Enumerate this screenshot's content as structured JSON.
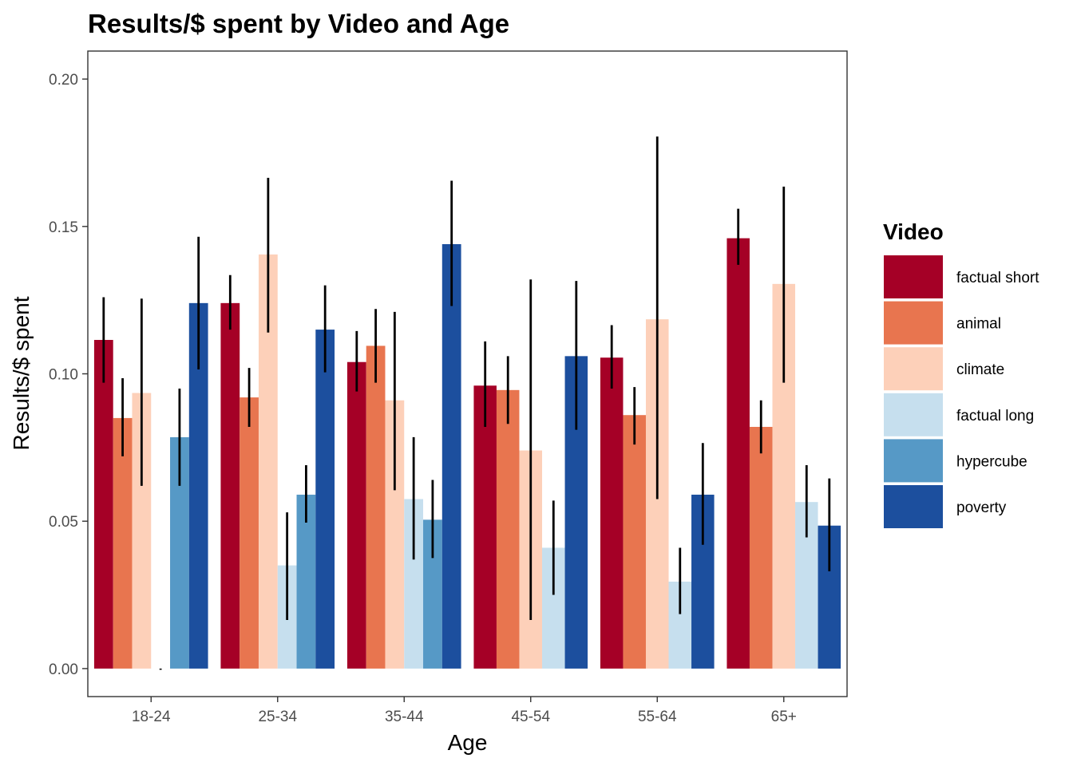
{
  "chart_data": {
    "type": "bar",
    "title": "Results/$ spent by Video and Age",
    "xlabel": "Age",
    "ylabel": "Results/$ spent",
    "ylim": [
      -0.0095,
      0.2095
    ],
    "yticks": [
      "0.00",
      "0.05",
      "0.10",
      "0.15",
      "0.20"
    ],
    "ytick_values": [
      0,
      0.05,
      0.1,
      0.15,
      0.2
    ],
    "categories": [
      "18-24",
      "25-34",
      "35-44",
      "45-54",
      "55-64",
      "65+"
    ],
    "legend": {
      "title": "Video",
      "position": "right"
    },
    "grid": false,
    "error_bars": true,
    "series": [
      {
        "name": "factual short",
        "color": "#a50026",
        "values": [
          0.1115,
          0.124,
          0.104,
          0.096,
          0.1055,
          0.146
        ],
        "err_low": [
          0.097,
          0.115,
          0.094,
          0.082,
          0.095,
          0.137
        ],
        "err_high": [
          0.126,
          0.1335,
          0.1145,
          0.111,
          0.1165,
          0.156
        ]
      },
      {
        "name": "animal",
        "color": "#e8754f",
        "values": [
          0.085,
          0.092,
          0.1095,
          0.0945,
          0.086,
          0.082
        ],
        "err_low": [
          0.072,
          0.082,
          0.097,
          0.083,
          0.076,
          0.073
        ],
        "err_high": [
          0.0985,
          0.102,
          0.122,
          0.106,
          0.0955,
          0.091
        ]
      },
      {
        "name": "climate",
        "color": "#fdd0b9",
        "values": [
          0.0935,
          0.1405,
          0.091,
          0.074,
          0.1185,
          0.1305
        ],
        "err_low": [
          0.062,
          0.114,
          0.0605,
          0.0165,
          0.0575,
          0.097
        ],
        "err_high": [
          0.1255,
          0.1665,
          0.121,
          0.132,
          0.1805,
          0.1635
        ]
      },
      {
        "name": "factual long",
        "color": "#c6dfee",
        "values": [
          0.0,
          0.035,
          0.0575,
          0.041,
          0.0295,
          0.0565
        ],
        "err_low": [
          0.0,
          0.0165,
          0.037,
          0.025,
          0.0185,
          0.0445
        ],
        "err_high": [
          0.0,
          0.053,
          0.0785,
          0.057,
          0.041,
          0.069
        ]
      },
      {
        "name": "hypercube",
        "color": "#5699c6",
        "values": [
          0.0785,
          0.059,
          0.0505,
          null,
          null,
          null
        ],
        "err_low": [
          0.062,
          0.0495,
          0.0375,
          null,
          null,
          null
        ],
        "err_high": [
          0.095,
          0.069,
          0.064,
          null,
          null,
          null
        ]
      },
      {
        "name": "poverty",
        "color": "#1c4f9e",
        "values": [
          0.124,
          0.115,
          0.144,
          0.106,
          0.059,
          0.0485
        ],
        "err_low": [
          0.1015,
          0.1005,
          0.123,
          0.081,
          0.042,
          0.033
        ],
        "err_high": [
          0.1465,
          0.13,
          0.1655,
          0.1315,
          0.0765,
          0.0645
        ]
      }
    ]
  }
}
